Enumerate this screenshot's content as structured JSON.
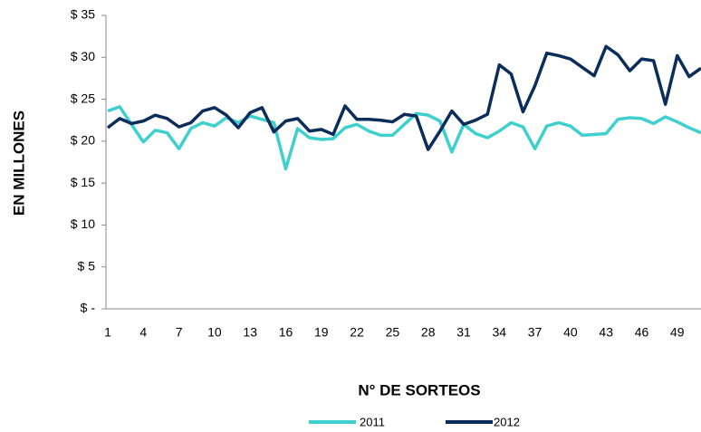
{
  "chart_data": {
    "type": "line",
    "y_label": "EN MILLONES",
    "x_label": "N° DE SORTEOS",
    "categories": [
      "1",
      null,
      null,
      "4",
      null,
      null,
      "7",
      null,
      null,
      "10",
      null,
      null,
      "13",
      null,
      null,
      "16",
      null,
      null,
      "19",
      null,
      null,
      "22",
      null,
      null,
      "25",
      null,
      null,
      "28",
      null,
      null,
      "31",
      null,
      null,
      "34",
      null,
      null,
      "37",
      null,
      null,
      "40",
      null,
      null,
      "43",
      null,
      null,
      "46",
      null,
      null,
      "49",
      null,
      null
    ],
    "series": [
      {
        "name": "2011",
        "color": "#3ecfcf",
        "values": [
          23.6,
          24.1,
          22.0,
          19.9,
          21.3,
          21.0,
          19.1,
          21.5,
          22.2,
          21.8,
          22.8,
          22.2,
          23.0,
          22.6,
          22.2,
          16.7,
          21.5,
          20.4,
          20.2,
          20.3,
          21.6,
          22.0,
          21.2,
          20.7,
          20.7,
          22.0,
          23.3,
          23.1,
          22.4,
          18.7,
          22.0,
          20.9,
          20.4,
          21.2,
          22.2,
          21.7,
          19.1,
          21.8,
          22.2,
          21.8,
          20.7,
          20.8,
          20.9,
          22.6,
          22.8,
          22.7,
          22.1,
          22.9,
          22.3,
          21.6,
          21.0
        ]
      },
      {
        "name": "2012",
        "color": "#0b2d5a",
        "values": [
          21.6,
          22.7,
          22.1,
          22.4,
          23.1,
          22.7,
          21.7,
          22.2,
          23.6,
          24.0,
          23.1,
          21.6,
          23.4,
          24.0,
          21.1,
          22.4,
          22.7,
          21.2,
          21.4,
          20.8,
          24.2,
          22.6,
          22.6,
          22.5,
          22.3,
          23.2,
          23.0,
          19.0,
          21.2,
          23.6,
          22.0,
          22.5,
          23.2,
          29.1,
          28.0,
          23.5,
          26.6,
          30.5,
          30.2,
          29.8,
          28.8,
          27.8,
          31.3,
          30.3,
          28.4,
          29.8,
          29.6,
          24.4,
          30.2,
          27.7,
          28.7
        ]
      }
    ],
    "ylim": [
      0,
      35
    ],
    "yticks": [
      {
        "value": 0,
        "label": "$ -"
      },
      {
        "value": 5,
        "label": "$ 5"
      },
      {
        "value": 10,
        "label": "$ 10"
      },
      {
        "value": 15,
        "label": "$ 15"
      },
      {
        "value": 20,
        "label": "$ 20"
      },
      {
        "value": 25,
        "label": "$ 25"
      },
      {
        "value": 30,
        "label": "$ 30"
      },
      {
        "value": 35,
        "label": "$ 35"
      }
    ],
    "grid": false,
    "legend": "bottom"
  }
}
